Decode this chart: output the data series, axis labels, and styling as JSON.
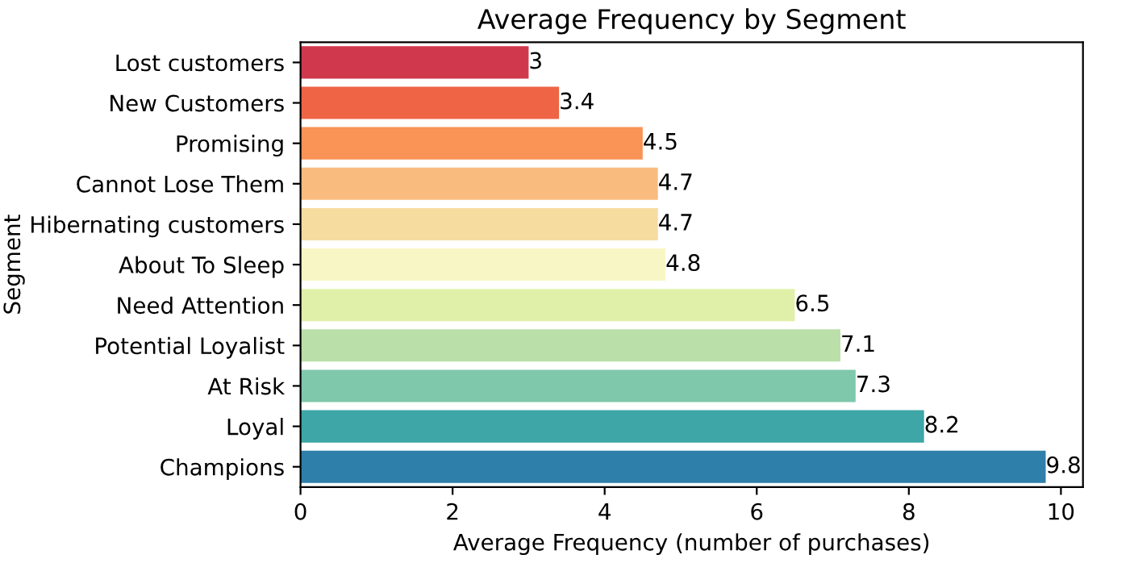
{
  "chart_data": {
    "type": "bar",
    "orientation": "horizontal",
    "title": "Average Frequency by Segment",
    "xlabel": "Average Frequency (number of purchases)",
    "ylabel": "Segment",
    "categories": [
      "Lost customers",
      "New Customers",
      "Promising",
      "Cannot Lose Them",
      "Hibernating customers",
      "About To Sleep",
      "Need Attention",
      "Potential Loyalist",
      "At Risk",
      "Loyal",
      "Champions"
    ],
    "values": [
      3,
      3.4,
      4.5,
      4.7,
      4.7,
      4.8,
      6.5,
      7.1,
      7.3,
      8.2,
      9.8
    ],
    "colors": [
      "#d0384e",
      "#ee6445",
      "#f99356",
      "#f9bc7e",
      "#f7dca0",
      "#f8f6c5",
      "#e1f0a8",
      "#bbdfa8",
      "#7fc8ab",
      "#3ea6a6",
      "#2f7fab"
    ],
    "xlim": [
      0,
      10.29
    ],
    "xticks": [
      0,
      2,
      4,
      6,
      8,
      10
    ],
    "data_labels": true,
    "grid": false,
    "legend": false
  }
}
